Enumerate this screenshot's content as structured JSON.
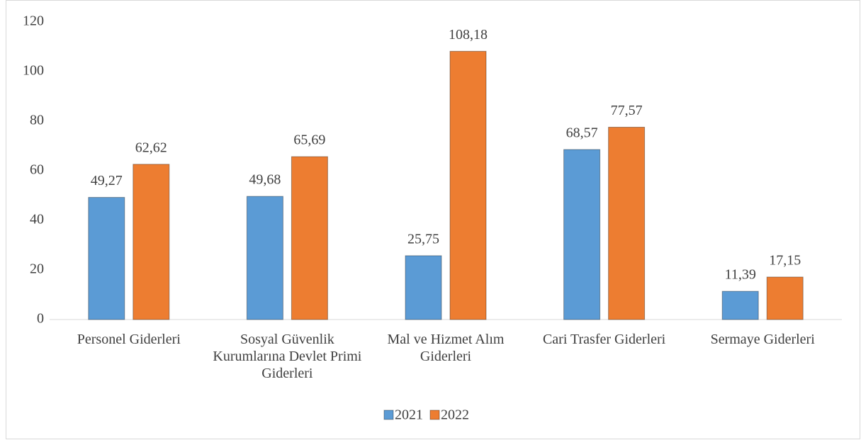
{
  "chart_data": {
    "type": "bar",
    "categories": [
      "Personel Giderleri",
      "Sosyal Güvenlik Kurumlarına Devlet Primi Giderleri",
      "Mal ve Hizmet Alım Giderleri",
      "Cari Trasfer Giderleri",
      "Sermaye Giderleri"
    ],
    "series": [
      {
        "name": "2021",
        "color": "#5b9bd5",
        "values": [
          49.27,
          49.68,
          25.75,
          68.57,
          11.39
        ],
        "value_labels": [
          "49,27",
          "49,68",
          "25,75",
          "68,57",
          "11,39"
        ]
      },
      {
        "name": "2022",
        "color": "#ed7d31",
        "values": [
          62.62,
          65.69,
          108.18,
          77.57,
          17.15
        ],
        "value_labels": [
          "62,62",
          "65,69",
          "108,18",
          "77,57",
          "17,15"
        ]
      }
    ],
    "ylim": [
      0,
      120
    ],
    "yticks": [
      0,
      20,
      40,
      60,
      80,
      100,
      120
    ],
    "grid": false,
    "legend": "bottom"
  }
}
